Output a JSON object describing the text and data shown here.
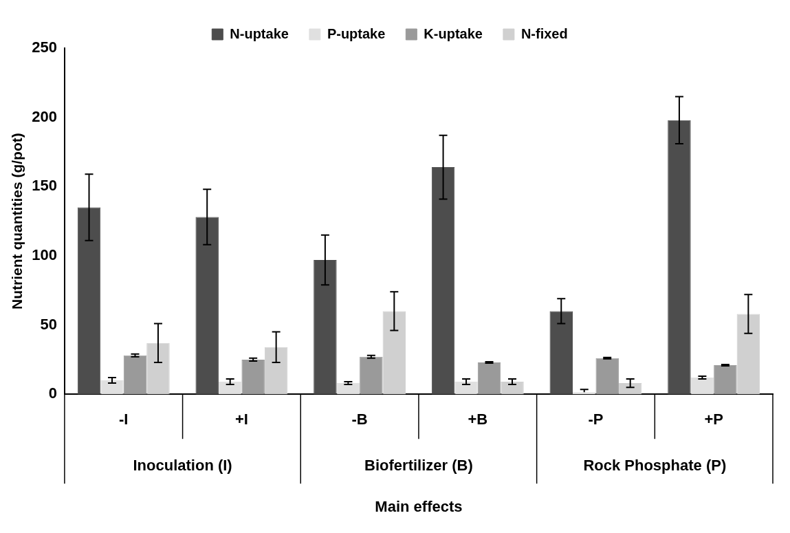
{
  "chart_data": {
    "type": "bar",
    "xlabel": "Main effects",
    "ylabel": "Nutrient quantities (g/pot)",
    "categories": [
      "-I",
      "+I",
      "-B",
      "+B",
      "-P",
      "+P"
    ],
    "annotations": [
      "Inoculation (I)",
      "Biofertilizer (B)",
      "Rock Phosphate (P)"
    ],
    "series": [
      {
        "name": "N-uptake",
        "color": "#4d4d4d",
        "values": [
          135,
          128,
          97,
          164,
          60,
          198
        ],
        "errors": [
          24,
          20,
          18,
          23,
          9,
          17
        ]
      },
      {
        "name": "P-uptake",
        "color": "#e0e0e0",
        "values": [
          10,
          9,
          8,
          9,
          1.5,
          12
        ],
        "errors": [
          2,
          2,
          1,
          2,
          [
            1.5,
            3.5
          ],
          1
        ]
      },
      {
        "name": "K-uptake",
        "color": "#9a9a9a",
        "values": [
          28,
          25,
          27,
          23,
          26,
          21
        ],
        "errors": [
          1,
          1,
          1,
          0.5,
          0.5,
          0.5
        ]
      },
      {
        "name": "N-fixed",
        "color": "#d0d0d0",
        "values": [
          37,
          34,
          60,
          9,
          8,
          58
        ],
        "errors": [
          14,
          11,
          14,
          2,
          3,
          14
        ]
      }
    ],
    "ylim": [
      0,
      250
    ],
    "yticks": [
      0,
      50,
      100,
      150,
      200,
      250
    ],
    "grid": false,
    "legend": "top"
  }
}
